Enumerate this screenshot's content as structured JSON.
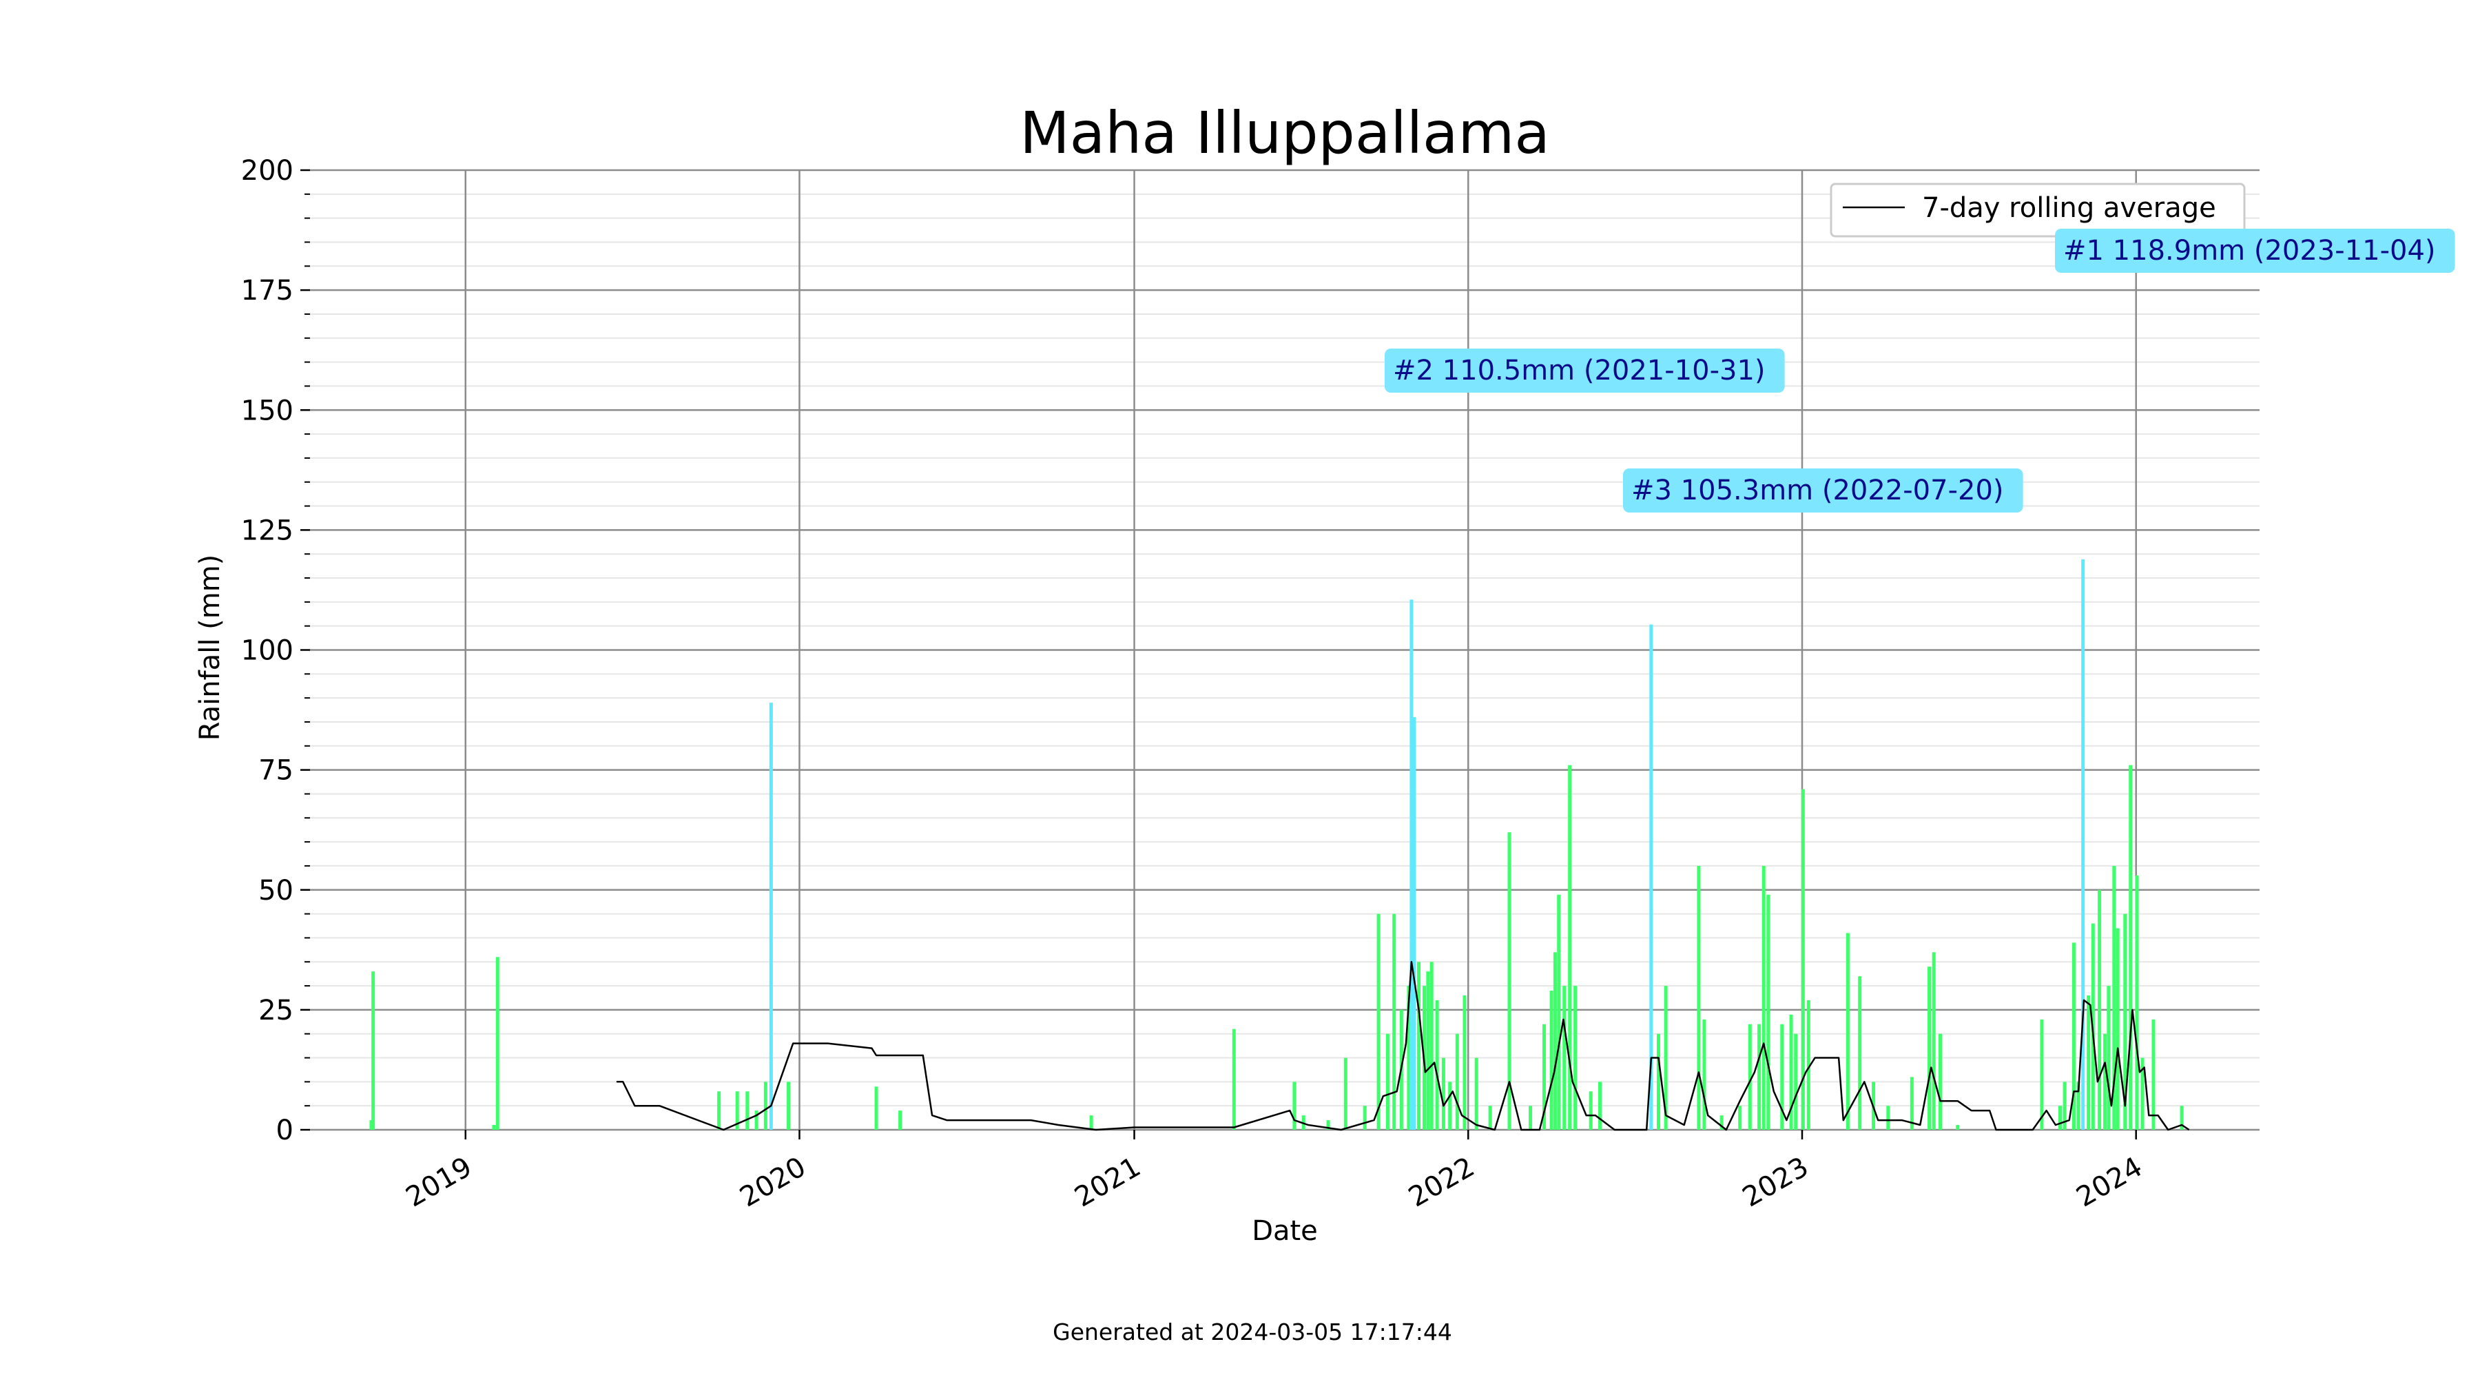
{
  "chart_data": {
    "type": "bar",
    "title": "Maha Illuppallama",
    "xlabel": "Date",
    "ylabel": "Rainfall (mm)",
    "ylim": [
      0,
      200
    ],
    "yticks": [
      0,
      25,
      50,
      75,
      100,
      125,
      150,
      175,
      200
    ],
    "xticks": [
      "2019",
      "2020",
      "2021",
      "2022",
      "2023",
      "2024"
    ],
    "xlim": [
      "2018-07-15",
      "2024-05-15"
    ],
    "grid": true,
    "legend": {
      "placement": "top-right",
      "entries": [
        "7-day rolling average"
      ]
    },
    "colors": {
      "daily": "#3dff6a",
      "highlight": "#5fe8ff",
      "rolling": "#000000",
      "grid_major": "#8c8c8c",
      "grid_minor": "#e6e6e6",
      "annotation_bg": "#7fe6ff",
      "annotation_text": "#0b0b8a"
    },
    "annotations": [
      {
        "label": "#1 118.9mm (2023-11-04)",
        "date": "2023-11-04",
        "value": 118.9
      },
      {
        "label": "#2 110.5mm (2021-10-31)",
        "date": "2021-10-31",
        "value": 110.5
      },
      {
        "label": "#3 105.3mm (2022-07-20)",
        "date": "2022-07-20",
        "value": 105.3
      }
    ],
    "series": [
      {
        "kind": "daily",
        "points": [
          [
            "2018-09-20",
            2
          ],
          [
            "2018-09-22",
            33
          ],
          [
            "2019-02-05",
            36
          ],
          [
            "2019-02-01",
            1
          ],
          [
            "2019-10-05",
            8
          ],
          [
            "2019-10-25",
            8
          ],
          [
            "2019-11-05",
            8
          ],
          [
            "2019-11-15",
            4
          ],
          [
            "2019-11-25",
            10
          ],
          [
            "2019-12-01",
            89
          ],
          [
            "2019-12-20",
            10
          ],
          [
            "2020-03-25",
            9
          ],
          [
            "2020-04-20",
            4
          ],
          [
            "2020-11-15",
            3
          ],
          [
            "2021-04-20",
            21
          ],
          [
            "2021-06-25",
            10
          ],
          [
            "2021-07-05",
            3
          ],
          [
            "2021-08-01",
            2
          ],
          [
            "2021-08-20",
            15
          ],
          [
            "2021-09-10",
            5
          ],
          [
            "2021-09-25",
            45
          ],
          [
            "2021-10-05",
            20
          ],
          [
            "2021-10-12",
            45
          ],
          [
            "2021-10-20",
            25
          ],
          [
            "2021-10-28",
            30
          ],
          [
            "2021-10-31",
            110.5
          ],
          [
            "2021-11-03",
            86
          ],
          [
            "2021-11-08",
            35
          ],
          [
            "2021-11-14",
            30
          ],
          [
            "2021-11-18",
            33
          ],
          [
            "2021-11-22",
            35
          ],
          [
            "2021-11-28",
            27
          ],
          [
            "2021-12-05",
            15
          ],
          [
            "2021-12-12",
            10
          ],
          [
            "2021-12-20",
            20
          ],
          [
            "2021-12-28",
            28
          ],
          [
            "2022-01-10",
            15
          ],
          [
            "2022-01-25",
            5
          ],
          [
            "2022-02-15",
            62
          ],
          [
            "2022-03-10",
            5
          ],
          [
            "2022-03-25",
            22
          ],
          [
            "2022-04-02",
            29
          ],
          [
            "2022-04-06",
            37
          ],
          [
            "2022-04-10",
            49
          ],
          [
            "2022-04-16",
            30
          ],
          [
            "2022-04-22",
            76
          ],
          [
            "2022-04-28",
            30
          ],
          [
            "2022-05-15",
            8
          ],
          [
            "2022-05-25",
            10
          ],
          [
            "2022-07-20",
            105.3
          ],
          [
            "2022-07-28",
            20
          ],
          [
            "2022-08-05",
            30
          ],
          [
            "2022-09-10",
            55
          ],
          [
            "2022-09-16",
            23
          ],
          [
            "2022-10-05",
            3
          ],
          [
            "2022-10-25",
            5
          ],
          [
            "2022-11-05",
            22
          ],
          [
            "2022-11-15",
            22
          ],
          [
            "2022-11-20",
            55
          ],
          [
            "2022-11-25",
            49
          ],
          [
            "2022-12-10",
            22
          ],
          [
            "2022-12-20",
            24
          ],
          [
            "2022-12-25",
            20
          ],
          [
            "2023-01-02",
            71
          ],
          [
            "2023-01-08",
            27
          ],
          [
            "2023-02-20",
            41
          ],
          [
            "2023-03-05",
            32
          ],
          [
            "2023-03-20",
            10
          ],
          [
            "2023-04-05",
            5
          ],
          [
            "2023-05-01",
            11
          ],
          [
            "2023-05-20",
            34
          ],
          [
            "2023-05-25",
            37
          ],
          [
            "2023-06-01",
            20
          ],
          [
            "2023-06-20",
            1
          ],
          [
            "2023-09-20",
            23
          ],
          [
            "2023-10-10",
            5
          ],
          [
            "2023-10-15",
            10
          ],
          [
            "2023-10-25",
            39
          ],
          [
            "2023-10-30",
            10
          ],
          [
            "2023-11-04",
            118.9
          ],
          [
            "2023-11-10",
            28
          ],
          [
            "2023-11-15",
            43
          ],
          [
            "2023-11-22",
            50
          ],
          [
            "2023-11-28",
            20
          ],
          [
            "2023-12-02",
            30
          ],
          [
            "2023-12-08",
            55
          ],
          [
            "2023-12-12",
            42
          ],
          [
            "2023-12-20",
            45
          ],
          [
            "2023-12-26",
            76
          ],
          [
            "2024-01-02",
            53
          ],
          [
            "2024-01-08",
            15
          ],
          [
            "2024-01-20",
            23
          ],
          [
            "2024-02-20",
            5
          ]
        ]
      },
      {
        "name": "7-day rolling average",
        "kind": "rolling",
        "points": [
          [
            "2019-06-15",
            10
          ],
          [
            "2019-06-22",
            10
          ],
          [
            "2019-07-05",
            5
          ],
          [
            "2019-08-01",
            5
          ],
          [
            "2019-10-10",
            0
          ],
          [
            "2019-11-15",
            3
          ],
          [
            "2019-12-01",
            5
          ],
          [
            "2019-12-25",
            18
          ],
          [
            "2020-02-01",
            18
          ],
          [
            "2020-03-20",
            17
          ],
          [
            "2020-03-25",
            15.5
          ],
          [
            "2020-05-15",
            15.5
          ],
          [
            "2020-05-25",
            3
          ],
          [
            "2020-06-10",
            2
          ],
          [
            "2020-09-10",
            2
          ],
          [
            "2020-10-10",
            1
          ],
          [
            "2020-11-20",
            0
          ],
          [
            "2021-01-01",
            0.5
          ],
          [
            "2021-04-20",
            0.5
          ],
          [
            "2021-06-20",
            4
          ],
          [
            "2021-06-25",
            2
          ],
          [
            "2021-07-10",
            1
          ],
          [
            "2021-08-15",
            0
          ],
          [
            "2021-09-20",
            2
          ],
          [
            "2021-09-30",
            7
          ],
          [
            "2021-10-15",
            8
          ],
          [
            "2021-10-25",
            18
          ],
          [
            "2021-10-31",
            35
          ],
          [
            "2021-11-08",
            25
          ],
          [
            "2021-11-15",
            12
          ],
          [
            "2021-11-25",
            14
          ],
          [
            "2021-12-05",
            5
          ],
          [
            "2021-12-15",
            8
          ],
          [
            "2021-12-25",
            3
          ],
          [
            "2022-01-10",
            1
          ],
          [
            "2022-01-30",
            0
          ],
          [
            "2022-02-15",
            10
          ],
          [
            "2022-02-28",
            0
          ],
          [
            "2022-03-20",
            0
          ],
          [
            "2022-04-05",
            12
          ],
          [
            "2022-04-15",
            23
          ],
          [
            "2022-04-25",
            10
          ],
          [
            "2022-05-10",
            3
          ],
          [
            "2022-05-20",
            3
          ],
          [
            "2022-06-10",
            0
          ],
          [
            "2022-07-15",
            0
          ],
          [
            "2022-07-20",
            15
          ],
          [
            "2022-07-28",
            15
          ],
          [
            "2022-08-05",
            3
          ],
          [
            "2022-08-25",
            1
          ],
          [
            "2022-09-10",
            12
          ],
          [
            "2022-09-20",
            3
          ],
          [
            "2022-10-10",
            0
          ],
          [
            "2022-10-25",
            6
          ],
          [
            "2022-11-10",
            12
          ],
          [
            "2022-11-20",
            18
          ],
          [
            "2022-12-01",
            8
          ],
          [
            "2022-12-15",
            2
          ],
          [
            "2022-12-25",
            7
          ],
          [
            "2023-01-05",
            12
          ],
          [
            "2023-01-15",
            15
          ],
          [
            "2023-02-10",
            15
          ],
          [
            "2023-02-15",
            2
          ],
          [
            "2023-03-10",
            10
          ],
          [
            "2023-03-25",
            2
          ],
          [
            "2023-04-20",
            2
          ],
          [
            "2023-05-10",
            1
          ],
          [
            "2023-05-15",
            6
          ],
          [
            "2023-05-22",
            13
          ],
          [
            "2023-06-01",
            6
          ],
          [
            "2023-06-20",
            6
          ],
          [
            "2023-07-05",
            4
          ],
          [
            "2023-07-25",
            4
          ],
          [
            "2023-08-01",
            0
          ],
          [
            "2023-09-10",
            0
          ],
          [
            "2023-09-25",
            4
          ],
          [
            "2023-10-05",
            1
          ],
          [
            "2023-10-20",
            2
          ],
          [
            "2023-10-25",
            8
          ],
          [
            "2023-10-30",
            8
          ],
          [
            "2023-11-05",
            27
          ],
          [
            "2023-11-12",
            26
          ],
          [
            "2023-11-20",
            10
          ],
          [
            "2023-11-28",
            14
          ],
          [
            "2023-12-05",
            5
          ],
          [
            "2023-12-12",
            17
          ],
          [
            "2023-12-20",
            5
          ],
          [
            "2023-12-28",
            25
          ],
          [
            "2024-01-05",
            12
          ],
          [
            "2024-01-10",
            13
          ],
          [
            "2024-01-15",
            3
          ],
          [
            "2024-01-25",
            3
          ],
          [
            "2024-02-05",
            0
          ],
          [
            "2024-02-20",
            1
          ],
          [
            "2024-02-28",
            0
          ]
        ]
      }
    ]
  },
  "footer": "Generated at 2024-03-05 17:17:44"
}
